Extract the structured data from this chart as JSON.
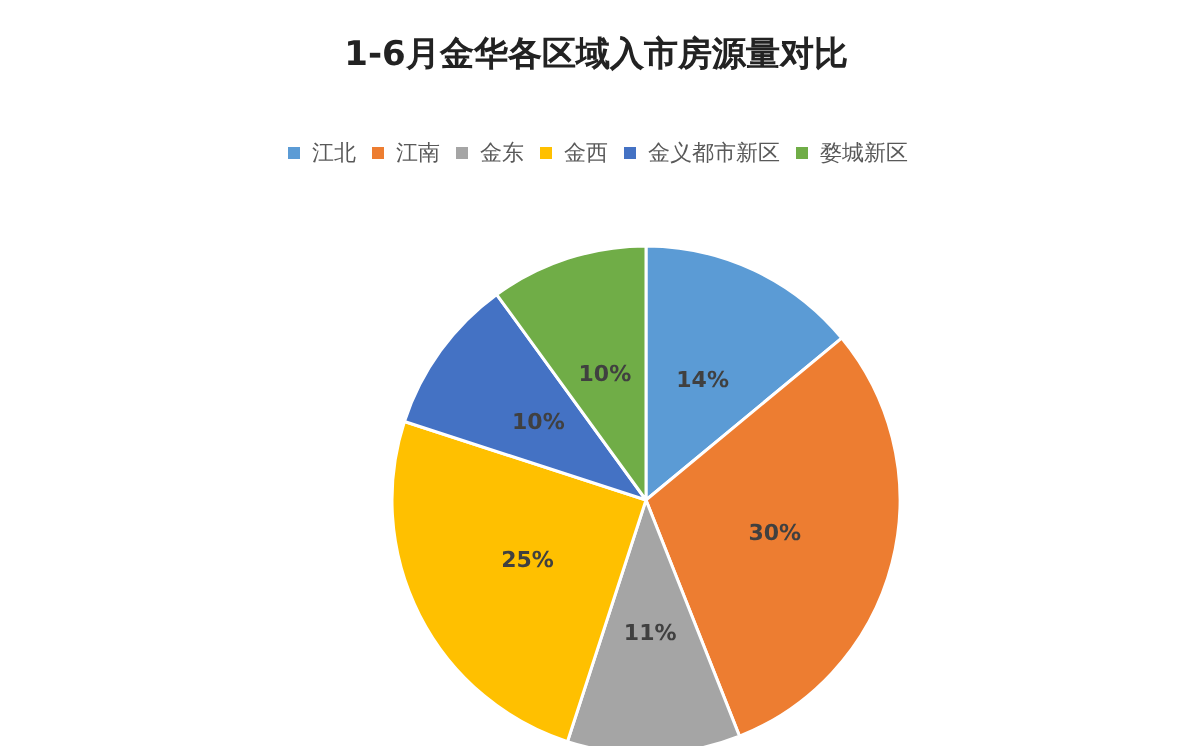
{
  "chart_data": {
    "type": "pie",
    "title": "1-6月金华各区域入市房源量对比",
    "categories": [
      "江北",
      "江南",
      "金东",
      "金西",
      "金义都市新区",
      "婺城新区"
    ],
    "values": [
      14,
      30,
      11,
      25,
      10,
      10
    ],
    "colors": [
      "#5b9bd5",
      "#ed7d31",
      "#a5a5a5",
      "#ffc000",
      "#4472c4",
      "#70ad47"
    ],
    "value_labels": [
      "14%",
      "30%",
      "11%",
      "25%",
      "10%",
      "10%"
    ],
    "legend": "top"
  }
}
